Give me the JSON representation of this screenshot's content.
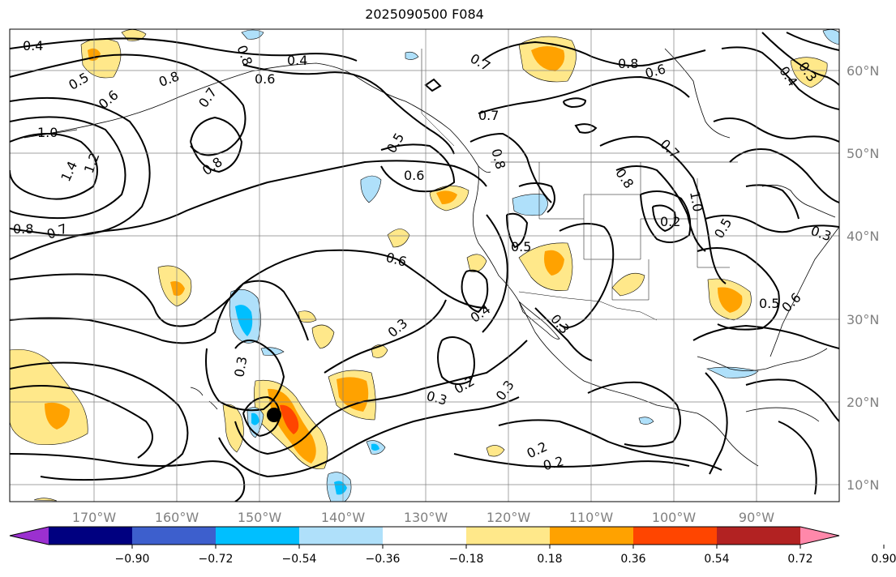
{
  "title": "2025090500 F084",
  "axes": {
    "lon_labels": [
      "170°W",
      "160°W",
      "150°W",
      "140°W",
      "130°W",
      "120°W",
      "110°W",
      "100°W",
      "90°W"
    ],
    "lat_labels": [
      "60°N",
      "50°N",
      "40°N",
      "30°N",
      "20°N",
      "10°N"
    ]
  },
  "colorbar": {
    "colors": [
      "#9b30d0",
      "#000080",
      "#3d5fcd",
      "#00bfff",
      "#afe0fa",
      "#ffffff",
      "#ffe88a",
      "#ffa200",
      "#ff4500",
      "#b22222",
      "#ff88aa"
    ],
    "tick_labels": [
      "−0.90",
      "−0.72",
      "−0.54",
      "−0.36",
      "−0.18",
      "0.18",
      "0.36",
      "0.54",
      "0.72",
      "0.90"
    ]
  },
  "contour_labels": [
    "0.4",
    "0.5",
    "0.6",
    "0.8",
    "1.0",
    "1.4",
    "1.2",
    "0.8",
    "0.7",
    "0.8",
    "0.6",
    "0.4",
    "0.7",
    "0.8",
    "0.5",
    "0.6",
    "0.7",
    "0.8",
    "0.7",
    "0.8",
    "0.6",
    "0.7",
    "0.8",
    "1.0",
    "0.2",
    "0.5",
    "0.4",
    "0.3",
    "0.3",
    "0.5",
    "0.6",
    "0.4",
    "0.3",
    "0.3",
    "0.5",
    "0.6",
    "0.3",
    "0.3",
    "0.2",
    "0.3"
  ],
  "storm_marker": "tropical-cyclone"
}
